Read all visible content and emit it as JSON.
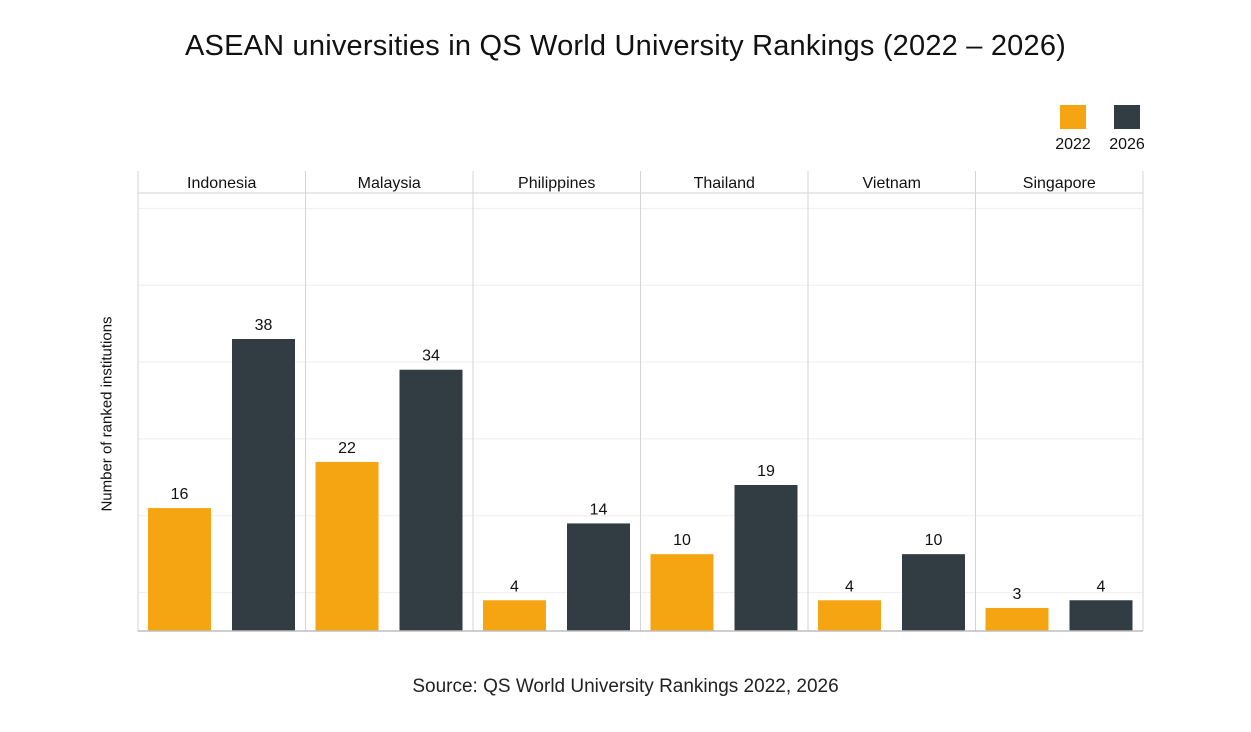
{
  "title": "ASEAN universities in QS World University Rankings (2022 – 2026)",
  "source": "Source: QS World University Rankings 2022, 2026",
  "colors": {
    "s2022": "#F5A511",
    "s2026": "#323C43"
  },
  "chart_data": {
    "type": "bar",
    "title": "ASEAN universities in QS World University Rankings (2022 – 2026)",
    "xlabel": "",
    "ylabel": "Number of ranked institutions",
    "ylim": [
      0,
      57
    ],
    "grid": true,
    "legend_position": "top-right",
    "categories": [
      "Indonesia",
      "Malaysia",
      "Philippines",
      "Thailand",
      "Vietnam",
      "Singapore"
    ],
    "series": [
      {
        "name": "2022",
        "values": [
          16,
          22,
          4,
          10,
          4,
          3
        ]
      },
      {
        "name": "2026",
        "values": [
          38,
          34,
          14,
          19,
          10,
          4
        ]
      }
    ]
  }
}
